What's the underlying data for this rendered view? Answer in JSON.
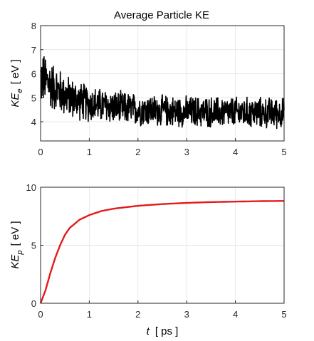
{
  "chart_data": [
    {
      "type": "line",
      "title": "Average Particle KE",
      "ylabel_main": "KE",
      "ylabel_sub": "e",
      "ylabel_unit": "[ eV ]",
      "xlim": [
        0,
        5
      ],
      "ylim": [
        3.2,
        8
      ],
      "xticks": [
        "0",
        "1",
        "2",
        "3",
        "4",
        "5"
      ],
      "yticks": [
        "4",
        "5",
        "6",
        "7",
        "8"
      ],
      "grid": true,
      "series": [
        {
          "color": "#000000",
          "description_of_shape": "noisy trace decaying from about 6 toward about 4.4",
          "x": [
            0,
            0.1,
            0.2,
            0.3,
            0.4,
            0.5,
            0.75,
            1,
            1.5,
            2,
            2.5,
            3,
            3.5,
            4,
            4.5,
            5
          ],
          "mean": [
            5.8,
            5.7,
            5.55,
            5.4,
            5.25,
            5.1,
            4.9,
            4.75,
            4.6,
            4.5,
            4.45,
            4.42,
            4.4,
            4.38,
            4.37,
            4.36
          ]
        }
      ]
    },
    {
      "type": "line",
      "xlabel_main": "t",
      "xlabel_unit": "[ ps ]",
      "ylabel_main": "KE",
      "ylabel_sub": "p",
      "ylabel_unit": "[ eV ]",
      "xlim": [
        0,
        5
      ],
      "ylim": [
        0,
        10
      ],
      "xticks": [
        "0",
        "1",
        "2",
        "3",
        "4",
        "5"
      ],
      "yticks": [
        "0",
        "5",
        "10"
      ],
      "grid": true,
      "series": [
        {
          "color": "#e41a1c",
          "x": [
            0,
            0.1,
            0.2,
            0.3,
            0.4,
            0.5,
            0.6,
            0.8,
            1.0,
            1.25,
            1.5,
            2.0,
            2.5,
            3.0,
            3.5,
            4.0,
            4.5,
            5.0
          ],
          "y": [
            0,
            1.1,
            2.6,
            3.9,
            5.0,
            5.9,
            6.5,
            7.2,
            7.6,
            7.95,
            8.15,
            8.4,
            8.55,
            8.65,
            8.72,
            8.76,
            8.8,
            8.82
          ]
        }
      ]
    }
  ]
}
